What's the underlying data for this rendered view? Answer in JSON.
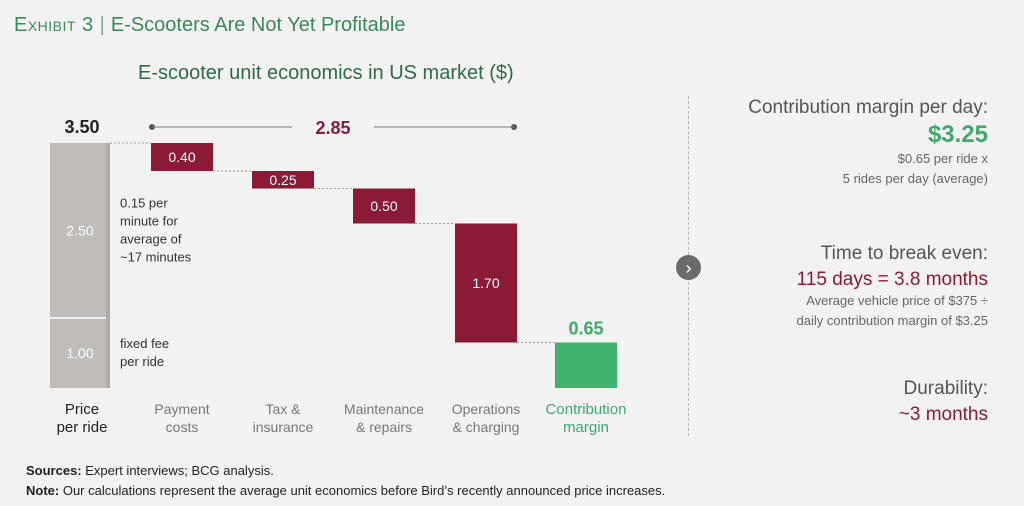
{
  "header": {
    "exhibit_label": "Exhibit 3",
    "separator": "|",
    "exhibit_title": "E-Scooters Are Not Yet Profitable"
  },
  "chart_data": {
    "type": "waterfall",
    "title": "E-scooter unit economics in US market ($)",
    "ylim": [
      0,
      3.5
    ],
    "price_bar": {
      "total": 3.5,
      "total_label": "3.50",
      "segments": [
        {
          "value": 1.0,
          "label": "1.00",
          "note_lines": [
            "fixed fee",
            "per ride"
          ]
        },
        {
          "value": 2.5,
          "label": "2.50",
          "note_lines": [
            "0.15 per",
            "minute for",
            "average of",
            "~17 minutes"
          ]
        }
      ],
      "category_lines": [
        "Price",
        "per ride"
      ]
    },
    "steps": [
      {
        "category_lines": [
          "Payment",
          "costs"
        ],
        "value": 0.4,
        "label": "0.40"
      },
      {
        "category_lines": [
          "Tax &",
          "insurance"
        ],
        "value": 0.25,
        "label": "0.25"
      },
      {
        "category_lines": [
          "Maintenance",
          "& repairs"
        ],
        "value": 0.5,
        "label": "0.50"
      },
      {
        "category_lines": [
          "Operations",
          "& charging"
        ],
        "value": 1.7,
        "label": "1.70"
      }
    ],
    "margin": {
      "category_lines": [
        "Contribution",
        "margin"
      ],
      "value": 0.65,
      "label": "0.65"
    },
    "costs_total": {
      "value": 2.85,
      "label": "2.85"
    },
    "colors": {
      "price": "#bfbcb9",
      "price_top": "#aeaba8",
      "cost": "#8a1a36",
      "margin": "#3fb36e",
      "margin_text": "#3fa86a",
      "category_text": "#777777",
      "dark_text": "#222222"
    }
  },
  "panel": {
    "margin_heading": "Contribution margin per day:",
    "margin_value": "$3.25",
    "margin_note_1": "$0.65 per ride x",
    "margin_note_2": "5 rides per day (average)",
    "breakeven_heading": "Time to break even:",
    "breakeven_value": "115 days = 3.8 months",
    "breakeven_note_1": "Average vehicle price of $375 ÷",
    "breakeven_note_2": "daily contribution margin of $3.25",
    "durability_heading": "Durability:",
    "durability_value": "~3 months",
    "arrow_icon": "›"
  },
  "footer": {
    "sources_label": "Sources:",
    "sources_text": " Expert interviews; BCG analysis.",
    "note_label": "Note:",
    "note_text": " Our calculations represent the average unit economics before Bird’s recently announced price increases."
  }
}
